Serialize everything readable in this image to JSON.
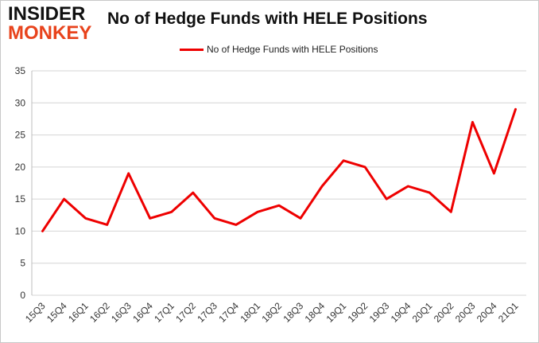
{
  "logo": {
    "line1": "INSIDER",
    "line2": "MONKEY"
  },
  "chart_data": {
    "type": "line",
    "title": "No of Hedge Funds with HELE Positions",
    "categories": [
      "15Q3",
      "15Q4",
      "16Q1",
      "16Q2",
      "16Q3",
      "16Q4",
      "17Q1",
      "17Q2",
      "17Q3",
      "17Q4",
      "18Q1",
      "18Q2",
      "18Q3",
      "18Q4",
      "19Q1",
      "19Q2",
      "19Q3",
      "19Q4",
      "20Q1",
      "20Q2",
      "20Q3",
      "20Q4",
      "21Q1"
    ],
    "series": [
      {
        "name": "No of Hedge Funds with HELE Positions",
        "values": [
          10,
          15,
          12,
          11,
          19,
          12,
          13,
          16,
          12,
          11,
          13,
          14,
          12,
          17,
          21,
          20,
          15,
          17,
          16,
          13,
          27,
          19,
          29
        ],
        "color": "#ee0000"
      }
    ],
    "xlabel": "",
    "ylabel": "",
    "ylim": [
      0,
      35
    ],
    "yticks": [
      0,
      5,
      10,
      15,
      20,
      25,
      30,
      35
    ],
    "grid": true,
    "legend": "top-center"
  }
}
